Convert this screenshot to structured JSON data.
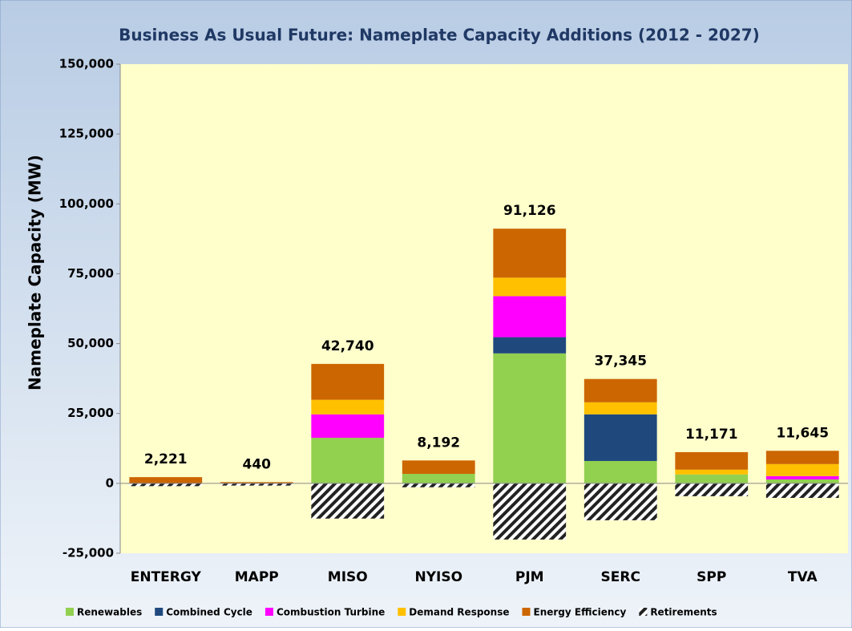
{
  "chart_data": {
    "type": "stacked-bar",
    "title": "Business As Usual Future: Nameplate Capacity Additions (2012 - 2027)",
    "y_label": "Nameplate Capacity (MW)",
    "categories": [
      "ENTERGY",
      "MAPP",
      "MISO",
      "NYISO",
      "PJM",
      "SERC",
      "SPP",
      "TVA"
    ],
    "series": [
      {
        "name": "Renewables",
        "color": "#92d050",
        "values": [
          0,
          0,
          16300,
          3400,
          46500,
          8000,
          3200,
          1400
        ]
      },
      {
        "name": "Combined Cycle",
        "color": "#1f497d",
        "values": [
          0,
          0,
          0,
          0,
          5800,
          16700,
          0,
          0
        ]
      },
      {
        "name": "Combustion Turbine",
        "color": "#ff00ff",
        "values": [
          0,
          0,
          8400,
          0,
          14700,
          0,
          0,
          1200
        ]
      },
      {
        "name": "Demand Response",
        "color": "#ffc000",
        "values": [
          0,
          0,
          5200,
          0,
          6600,
          4300,
          1700,
          4300
        ]
      },
      {
        "name": "Energy Efficiency",
        "color": "#cc6600",
        "values": [
          2221,
          440,
          12840,
          4792,
          17526,
          8345,
          6271,
          4745
        ]
      },
      {
        "name": "Retirements",
        "color": "hatch",
        "values": [
          -1000,
          -800,
          -12600,
          -1400,
          -20100,
          -13200,
          -4600,
          -5200
        ]
      }
    ],
    "totals": {
      "values": [
        2221,
        440,
        42740,
        8192,
        91126,
        37345,
        11171,
        11645
      ],
      "value_labels": [
        "2,221",
        "440",
        "42,740",
        "8,192",
        "91,126",
        "37,345",
        "11,171",
        "11,645"
      ]
    },
    "ylim": [
      -25000,
      150000
    ],
    "yticks": [
      {
        "value": -25000,
        "label": "-25,000"
      },
      0,
      {
        "value": 25000,
        "label": "25,000"
      },
      {
        "value": 50000,
        "label": "50,000"
      },
      {
        "value": 75000,
        "label": "75,000"
      },
      {
        "value": 100000,
        "label": "100,000"
      },
      {
        "value": 125000,
        "label": "125,000"
      },
      {
        "value": 150000,
        "label": "150,000"
      }
    ],
    "legend": "bottom"
  }
}
